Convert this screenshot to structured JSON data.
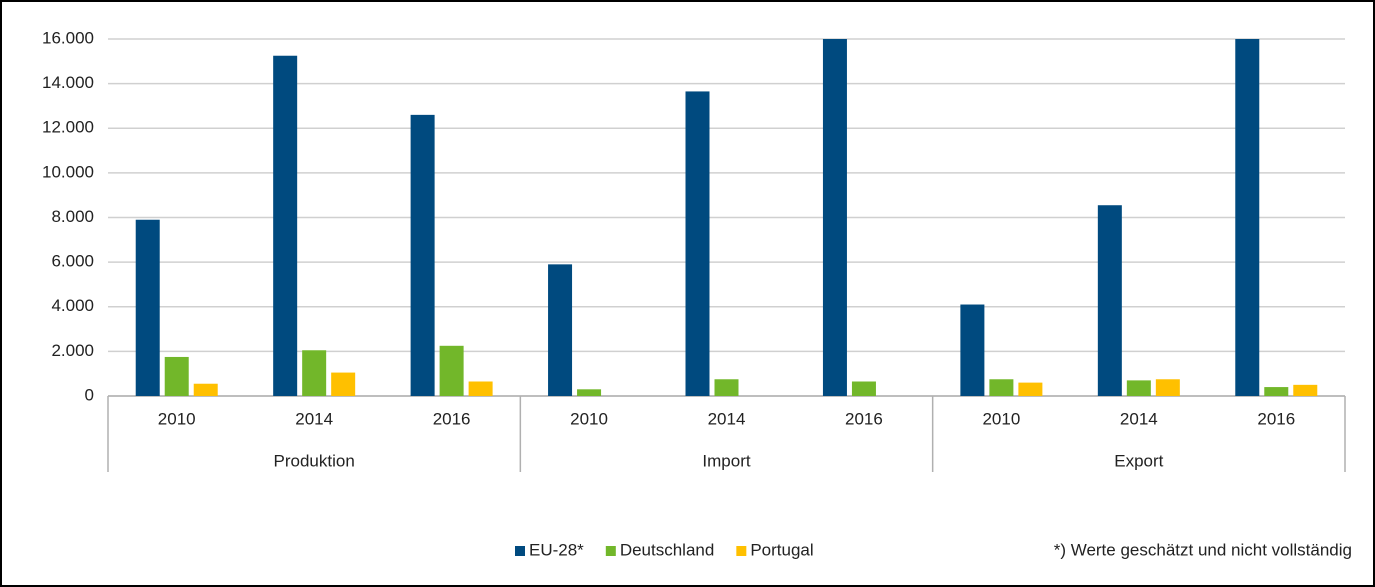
{
  "chart_data": {
    "type": "bar",
    "categories": [
      "2010",
      "2014",
      "2016",
      "2010",
      "2014",
      "2016",
      "2010",
      "2014",
      "2016"
    ],
    "groups": [
      "Produktion",
      "Import",
      "Export"
    ],
    "series": [
      {
        "name": "EU-28*",
        "color": "#004a7f",
        "values": [
          7900,
          15250,
          12600,
          5900,
          13650,
          16000,
          4100,
          8550,
          16000
        ]
      },
      {
        "name": "Deutschland",
        "color": "#72b72a",
        "values": [
          1750,
          2050,
          2250,
          300,
          750,
          650,
          750,
          700,
          400
        ]
      },
      {
        "name": "Portugal",
        "color": "#ffc000",
        "values": [
          550,
          1050,
          650,
          null,
          null,
          null,
          600,
          750,
          500
        ]
      }
    ],
    "ylim": [
      0,
      16000
    ],
    "yticks": [
      0,
      {
        "value": 2000,
        "label": "2.000"
      },
      {
        "value": 4000,
        "label": "4.000"
      },
      {
        "value": 6000,
        "label": "6.000"
      },
      {
        "value": 8000,
        "label": "8.000"
      },
      {
        "value": 10000,
        "label": "10.000"
      },
      {
        "value": 12000,
        "label": "12.000"
      },
      {
        "value": 14000,
        "label": "14.000"
      },
      {
        "value": 16000,
        "label": "16.000"
      }
    ],
    "grid": true,
    "note": "*) Werte geschätzt und nicht vollständig"
  }
}
